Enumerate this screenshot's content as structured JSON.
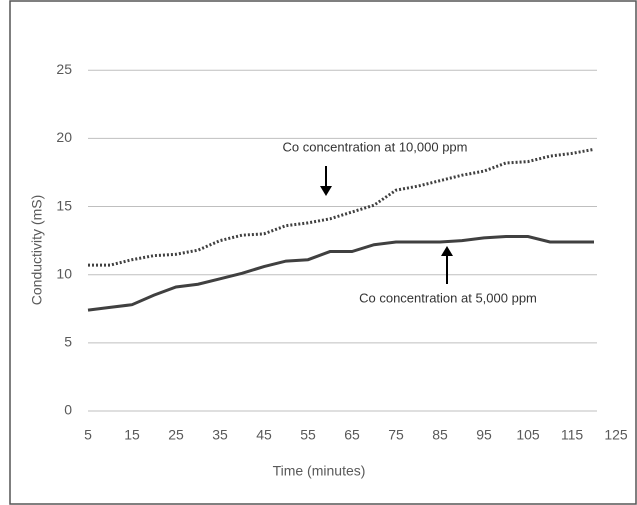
{
  "chart_data": {
    "type": "line",
    "x_label": "Time (minutes)",
    "y_label": "Conductivity (mS)",
    "x": [
      5,
      10,
      15,
      20,
      25,
      30,
      35,
      40,
      45,
      50,
      55,
      60,
      65,
      70,
      75,
      80,
      85,
      90,
      95,
      100,
      105,
      110,
      115,
      120
    ],
    "series": [
      {
        "name": "Co concentration at 10,000 ppm",
        "color": "#404040",
        "dash": "dotted",
        "values": [
          10.7,
          10.7,
          11.1,
          11.4,
          11.5,
          11.8,
          12.5,
          12.9,
          13.0,
          13.6,
          13.8,
          14.1,
          14.6,
          15.1,
          16.2,
          16.5,
          16.9,
          17.3,
          17.6,
          18.2,
          18.3,
          18.7,
          18.9,
          19.2
        ]
      },
      {
        "name": "Co concentration at 5,000 ppm",
        "color": "#404040",
        "dash": "solid",
        "values": [
          7.4,
          7.6,
          7.8,
          8.5,
          9.1,
          9.3,
          9.7,
          10.1,
          10.6,
          11.0,
          11.1,
          11.7,
          11.7,
          12.2,
          12.4,
          12.4,
          12.4,
          12.5,
          12.7,
          12.8,
          12.8,
          12.4,
          12.4,
          12.4
        ]
      }
    ],
    "xlim": [
      5,
      125
    ],
    "xticks": [
      5,
      15,
      25,
      35,
      45,
      55,
      65,
      75,
      85,
      95,
      105,
      115,
      125
    ],
    "ylim": [
      0,
      27
    ],
    "yticks": [
      0,
      5,
      10,
      15,
      20,
      25
    ],
    "grid": true
  }
}
